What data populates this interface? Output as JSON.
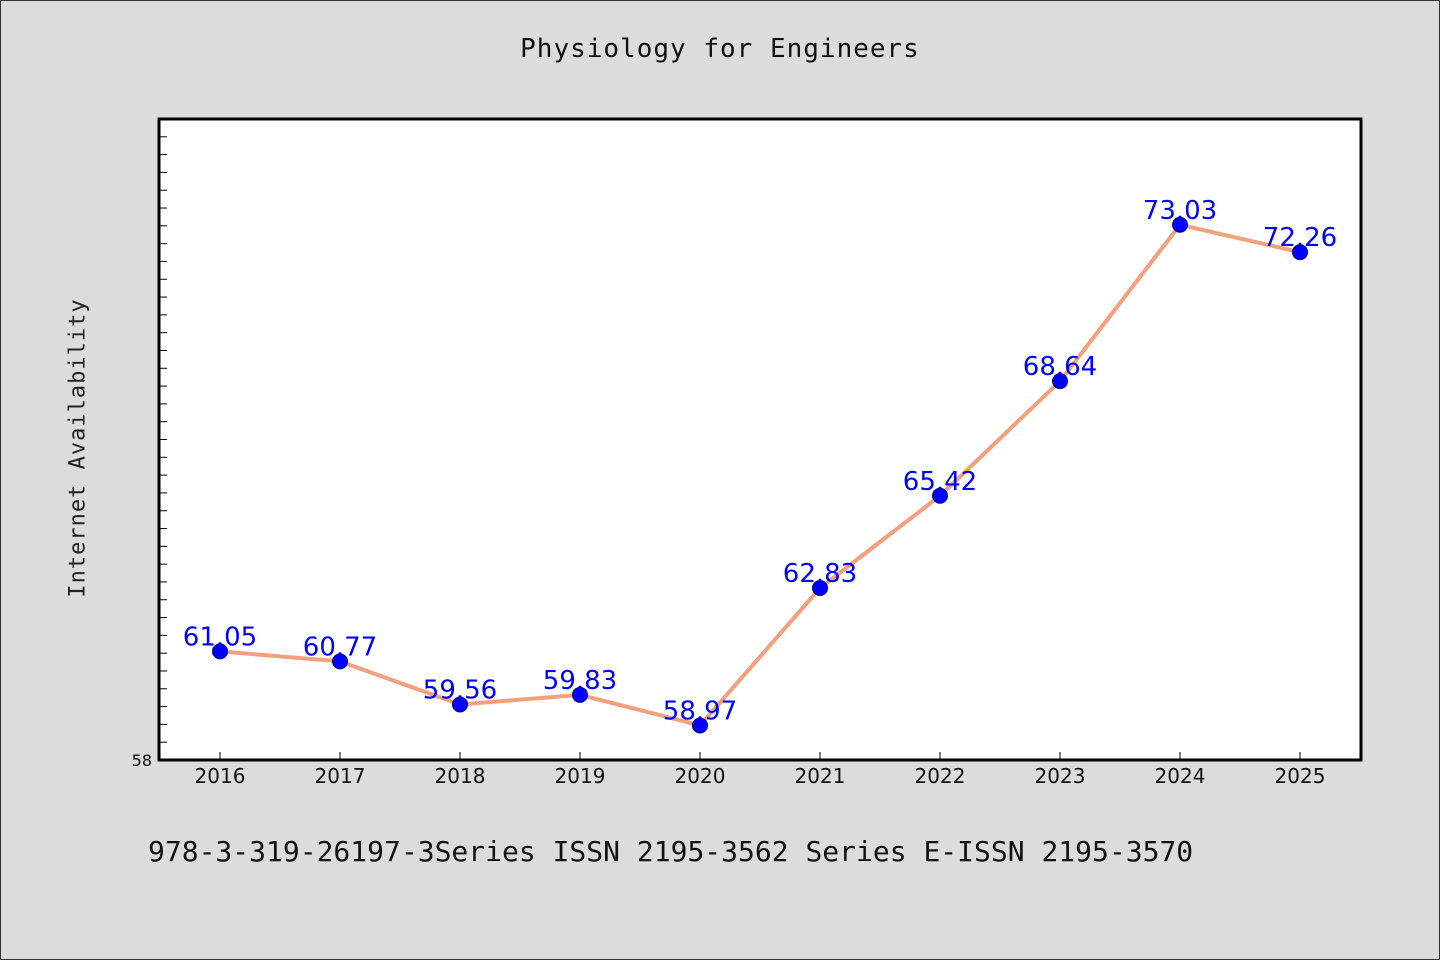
{
  "title": "Physiology for Engineers",
  "footer": "978-3-319-26197-3Series ISSN 2195-3562 Series E-ISSN 2195-3570",
  "colors": {
    "background": "#dcdcdc",
    "plot_background": "#ffffff",
    "line": "#f4a07c",
    "marker": "#0000ff",
    "data_label": "#0000ff"
  },
  "chart_data": {
    "type": "line",
    "title": "Physiology for Engineers",
    "xlabel": "",
    "ylabel": "Internet Availability",
    "x": [
      "2016",
      "2017",
      "2018",
      "2019",
      "2020",
      "2021",
      "2022",
      "2023",
      "2024",
      "2025"
    ],
    "series": [
      {
        "values": [
          61.05,
          60.77,
          59.56,
          59.83,
          58.97,
          62.83,
          65.42,
          68.64,
          73.03,
          72.26
        ]
      }
    ],
    "ylim": [
      58,
      76
    ],
    "y_tick_labels_shown": [
      "58"
    ],
    "grid": false,
    "legend": "none",
    "data_labels": true
  }
}
